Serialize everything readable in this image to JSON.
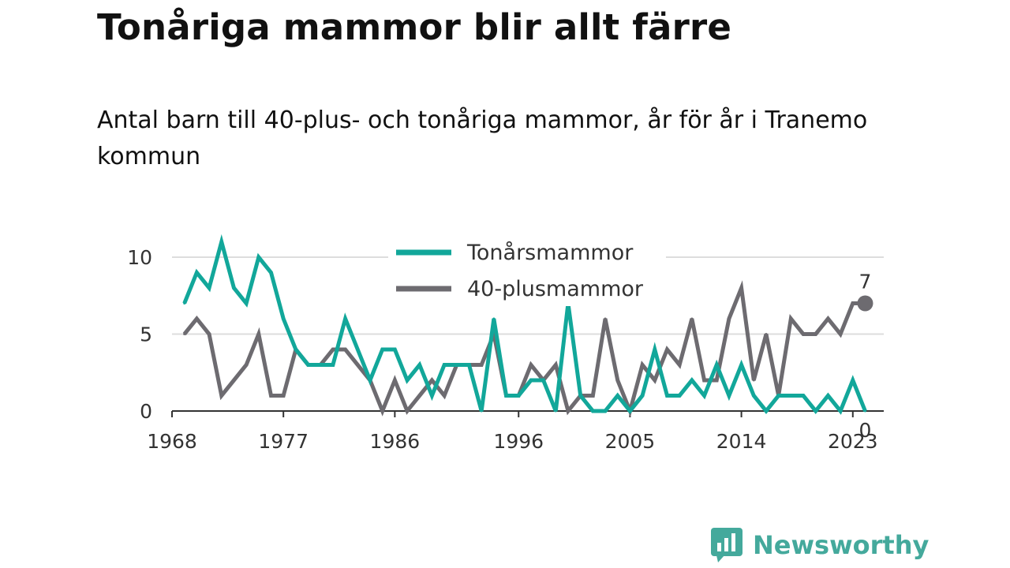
{
  "title": "Tonåriga mammor blir allt färre",
  "subtitle": "Antal barn till 40-plus- och tonåriga mammor, år för år i Tranemo kommun",
  "brand": {
    "name": "Newsworthy",
    "logo_icon": "bar-chart-speech-bubble-icon"
  },
  "colors": {
    "teen": "#12a79a",
    "plus40": "#6d6b70",
    "grid": "#dddddd",
    "axis": "#333333",
    "text": "#333333",
    "brand": "#44a99c"
  },
  "chart_data": {
    "type": "line",
    "xlabel": "",
    "ylabel": "",
    "xlim": [
      1968,
      2025
    ],
    "ylim": [
      0,
      11
    ],
    "x_ticks": [
      "1968",
      "1977",
      "1986",
      "1996",
      "2005",
      "2014",
      "2023"
    ],
    "y_ticks": [
      "0",
      "5",
      "10"
    ],
    "grid": true,
    "legend_position": "top-center",
    "x": [
      1969,
      1970,
      1971,
      1972,
      1973,
      1974,
      1975,
      1976,
      1977,
      1978,
      1979,
      1980,
      1981,
      1982,
      1983,
      1984,
      1985,
      1986,
      1987,
      1988,
      1989,
      1990,
      1991,
      1992,
      1993,
      1994,
      1995,
      1996,
      1997,
      1998,
      1999,
      2000,
      2001,
      2002,
      2003,
      2004,
      2005,
      2006,
      2007,
      2008,
      2009,
      2010,
      2011,
      2012,
      2013,
      2014,
      2015,
      2016,
      2017,
      2018,
      2019,
      2020,
      2021,
      2022,
      2023,
      2024
    ],
    "series": [
      {
        "name": "Tonårsmammor",
        "key": "teen",
        "end_label": "0",
        "values": [
          7,
          9,
          8,
          11,
          8,
          7,
          10,
          9,
          6,
          4,
          3,
          3,
          3,
          6,
          4,
          2,
          4,
          4,
          2,
          3,
          1,
          3,
          3,
          3,
          0,
          6,
          1,
          1,
          2,
          2,
          0,
          7,
          1,
          0,
          0,
          1,
          0,
          1,
          4,
          1,
          1,
          2,
          1,
          3,
          1,
          3,
          1,
          0,
          1,
          1,
          1,
          0,
          1,
          0,
          2,
          0
        ]
      },
      {
        "name": "40-plusmammor",
        "key": "plus40",
        "end_label": "7",
        "values": [
          5,
          6,
          5,
          1,
          2,
          3,
          5,
          1,
          1,
          4,
          3,
          3,
          4,
          4,
          3,
          2,
          0,
          2,
          0,
          1,
          2,
          1,
          3,
          3,
          3,
          5,
          1,
          1,
          3,
          2,
          3,
          0,
          1,
          1,
          6,
          2,
          0,
          3,
          2,
          4,
          3,
          6,
          2,
          2,
          6,
          8,
          2,
          5,
          1,
          6,
          5,
          5,
          6,
          5,
          7,
          7
        ]
      }
    ]
  }
}
